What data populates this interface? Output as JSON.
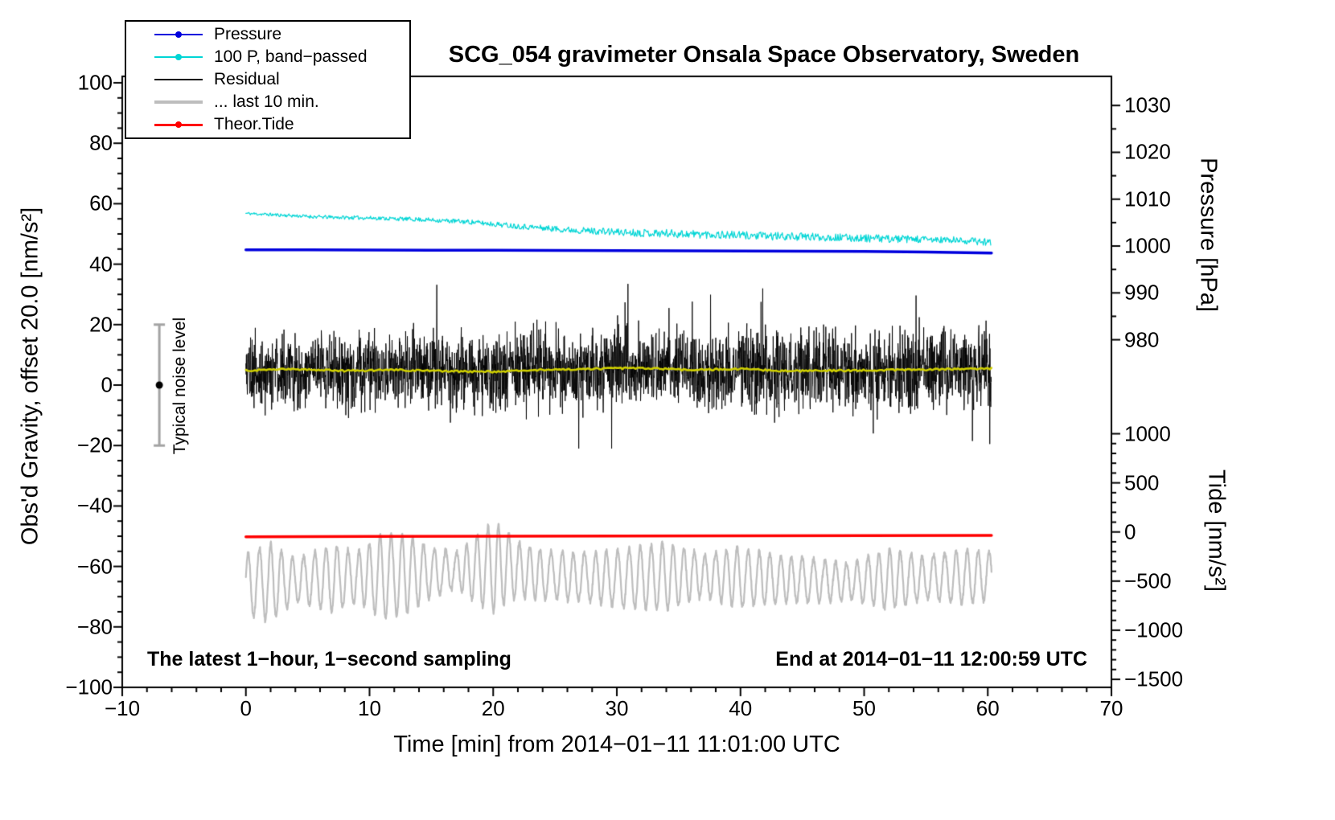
{
  "chart_data": {
    "type": "line",
    "title": "SCG_054 gravimeter Onsala Space Observatory, Sweden",
    "xlabel": "Time [min] from 2014−01−11 11:01:00 UTC",
    "axes": {
      "x": {
        "min": -10,
        "max": 70,
        "minor_step": 2,
        "ticks": {
          "values": [
            -10,
            0,
            10,
            20,
            30,
            40,
            50,
            60,
            70
          ],
          "labels": [
            "−10",
            "0",
            "10",
            "20",
            "30",
            "40",
            "50",
            "60",
            "70"
          ]
        }
      },
      "left": {
        "label": "Obs'd Gravity, offset 20.0 [nm/s²]",
        "min": -100,
        "max": 100,
        "minor_step": 5,
        "ticks": {
          "values": [
            100,
            80,
            60,
            40,
            20,
            0,
            -20,
            -40,
            -60,
            -80,
            -100
          ],
          "labels": [
            "100",
            "80",
            "60",
            "40",
            "20",
            "0",
            "−20",
            "−40",
            "−60",
            "−80",
            "−100"
          ]
        }
      },
      "pressure": {
        "label": "Pressure [hPa]",
        "ref": 1000,
        "left_at_ref": 46,
        "left_per_unit": 1.55,
        "minor_step": 5,
        "ticks": {
          "values": [
            1030,
            1020,
            1010,
            1000,
            990,
            980
          ],
          "labels": [
            "1030",
            "1020",
            "1010",
            "1000",
            "990",
            "980"
          ]
        }
      },
      "tide": {
        "label": "Tide [nm/s²]",
        "ref": 0,
        "left_at_ref": -48.6,
        "left_per_unit": 0.0325,
        "minor_step": 100,
        "ticks": {
          "values": [
            1000,
            500,
            0,
            -500,
            -1000,
            -1500
          ],
          "labels": [
            "1000",
            "500",
            "0",
            "−500",
            "−1000",
            "−1500"
          ]
        }
      }
    },
    "legend": {
      "items": [
        {
          "label": "Pressure",
          "color": "#0000dd",
          "line_width": 2,
          "dot": true
        },
        {
          "label": "100 P, band−passed",
          "color": "#00d5d5",
          "line_width": 1.5,
          "dot": true
        },
        {
          "label": "Residual",
          "color": "#000000",
          "line_width": 2.5,
          "dot": false
        },
        {
          "label": "... last 10 min.",
          "color": "#bdbdbd",
          "line_width": 3.5,
          "dot": false
        },
        {
          "label": "Theor.Tide",
          "color": "#ff0000",
          "line_width": 3,
          "dot": true
        }
      ]
    },
    "annotations": {
      "sampling": "The latest 1−hour, 1−second sampling",
      "end": "End at 2014−01−11 12:00:59 UTC",
      "noise_label": "Typical noise level"
    },
    "noise_bar": {
      "x": -7,
      "from": -20,
      "to": 20,
      "dot": 0
    },
    "series": [
      {
        "name": "100 P, band-passed",
        "kind": "noisy",
        "axis": "left",
        "color": "#00d5d5",
        "width": 1.2,
        "range": [
          0,
          60.3
        ],
        "trend_x": [
          0,
          3,
          6,
          10,
          14,
          18,
          22,
          26,
          30,
          34,
          38,
          42,
          46,
          50,
          54,
          58,
          60.3
        ],
        "trend_v": [
          56.8,
          56.2,
          55.6,
          55.3,
          54.8,
          54.0,
          52.6,
          51.4,
          50.6,
          50.2,
          49.8,
          49.3,
          49.0,
          48.6,
          48.2,
          47.8,
          47.3
        ],
        "noise": {
          "seed": 11,
          "step": 0.06,
          "amp_x": [
            0,
            15,
            25,
            35,
            45,
            60.3
          ],
          "amp_v": [
            0.5,
            0.7,
            1.0,
            1.4,
            1.3,
            1.2
          ]
        }
      },
      {
        "name": "Pressure",
        "kind": "poly",
        "axis": "pressure",
        "color": "#0000dd",
        "width": 3.5,
        "range": [
          0,
          60.3
        ],
        "x": [
          0,
          5,
          10,
          15,
          20,
          25,
          30,
          35,
          40,
          45,
          50,
          55,
          60.3
        ],
        "v": [
          999.2,
          999.18,
          999.15,
          999.12,
          999.1,
          999.05,
          999.0,
          998.98,
          998.95,
          998.9,
          998.85,
          998.7,
          998.5
        ]
      },
      {
        "name": "Residual",
        "kind": "random",
        "axis": "left",
        "color": "#000000",
        "width": 0.9,
        "range": [
          0,
          60.3
        ],
        "trend_x": [
          0,
          60.3
        ],
        "trend_v": [
          4.8,
          5.2
        ],
        "noise": {
          "seed": 5,
          "step": 0.02,
          "sigma": 6.2,
          "spike_prob": 0.007,
          "clamp": [
            -21,
            36
          ]
        }
      },
      {
        "name": "Residual smoothed",
        "kind": "noisy",
        "axis": "left",
        "color": "#cfcf00",
        "width": 2.6,
        "range": [
          0,
          60.3
        ],
        "trend_x": [
          0,
          4,
          8,
          12,
          16,
          20,
          24,
          28,
          32,
          36,
          40,
          44,
          48,
          52,
          56,
          60.3
        ],
        "trend_v": [
          4.8,
          5.3,
          4.7,
          5.0,
          4.6,
          4.4,
          5.0,
          5.4,
          5.6,
          5.0,
          5.3,
          4.6,
          4.8,
          5.0,
          5.2,
          5.4
        ],
        "noise": {
          "seed": 4,
          "step": 0.15,
          "amp_x": [
            0,
            60.3
          ],
          "amp_v": [
            0.3,
            0.3
          ]
        }
      },
      {
        "name": "... last 10 min.",
        "kind": "osc",
        "axis": "left",
        "color": "#bdbdbd",
        "width": 2.2,
        "range": [
          0,
          60.3
        ],
        "base_x": [
          0,
          6,
          12,
          18,
          21,
          24,
          30,
          36,
          42,
          48,
          54,
          60.3
        ],
        "base_v": [
          -66,
          -64,
          -63,
          -61,
          -60,
          -63,
          -64,
          -63,
          -64,
          -65,
          -64,
          -63
        ],
        "amp_x": [
          0,
          2,
          4,
          7,
          9,
          11,
          13,
          15,
          17,
          20,
          22,
          25,
          28,
          31,
          34,
          37,
          40,
          43,
          46,
          49,
          52,
          55,
          58,
          60.3
        ],
        "amp_v": [
          10,
          13,
          7,
          11,
          8,
          14,
          13,
          8,
          6,
          15,
          9,
          8,
          8,
          10,
          11,
          7,
          10,
          8,
          7,
          6,
          10,
          7,
          9,
          8
        ],
        "osc": {
          "seed": 9,
          "step": 0.025,
          "period": 0.8,
          "jitter": 0.9
        }
      },
      {
        "name": "Theor.Tide",
        "kind": "poly",
        "axis": "tide",
        "color": "#ff0000",
        "width": 3.5,
        "range": [
          0,
          60.3
        ],
        "x": [
          0,
          10,
          20,
          30,
          40,
          50,
          60.3
        ],
        "v": [
          -49,
          -46,
          -43,
          -41,
          -38,
          -36,
          -34
        ]
      }
    ]
  }
}
